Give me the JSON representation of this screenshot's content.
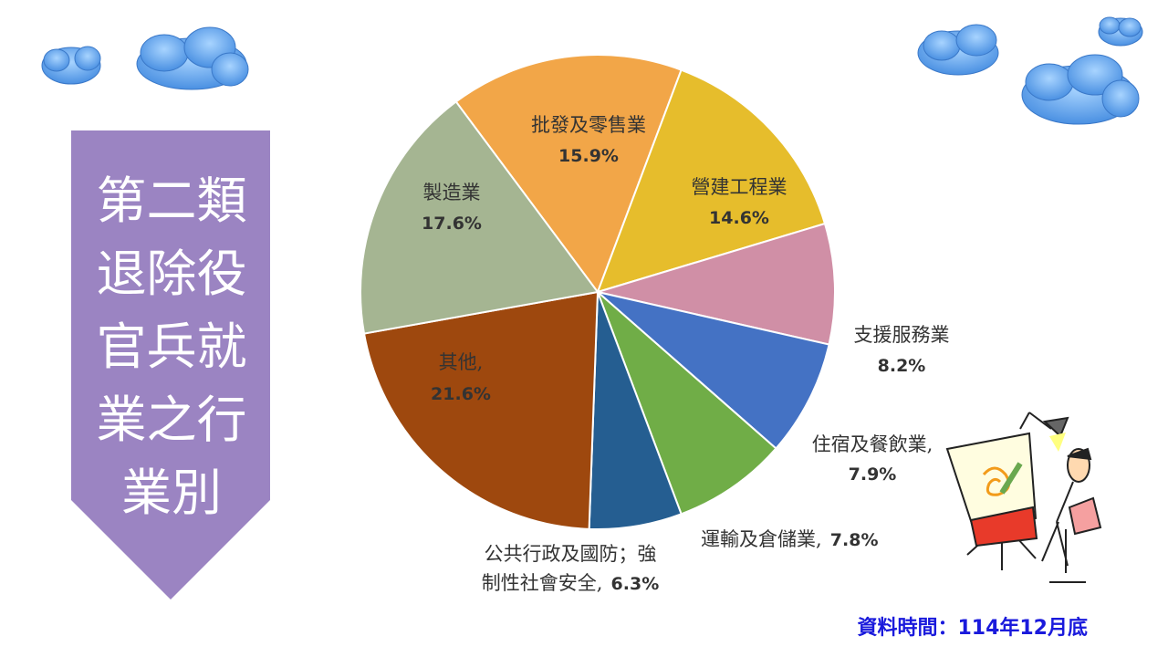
{
  "title": {
    "lines": [
      "第二類",
      "退除役",
      "官兵就",
      "業之行",
      "業別"
    ]
  },
  "source": "資料時間：114年12月底",
  "colors": {
    "banner": "#9b84c2",
    "source_text": "#1a1adc"
  },
  "chart_data": {
    "type": "pie",
    "title": "第二類退除役官兵就業之行業別",
    "unit": "%",
    "slices": [
      {
        "name": "批發及零售業",
        "value": 15.9,
        "value_label": "15.9%",
        "color": "#f2a648"
      },
      {
        "name": "營建工程業",
        "value": 14.6,
        "value_label": "14.6%",
        "color": "#e6bd2c"
      },
      {
        "name": "支援服務業",
        "value": 8.2,
        "value_label": "8.2%",
        "color": "#d08fa6"
      },
      {
        "name": "住宿及餐飲業,",
        "value": 7.9,
        "value_label": "7.9%",
        "color": "#4472c4"
      },
      {
        "name": "運輸及倉儲業,",
        "value": 7.8,
        "value_label": "7.8%",
        "color": "#70ad47"
      },
      {
        "name": "公共行政及國防；強制性社會安全,",
        "name_line1": "公共行政及國防；強",
        "name_line2": "制性社會安全,",
        "value": 6.3,
        "value_label": "6.3%",
        "color": "#255e91"
      },
      {
        "name": "其他,",
        "value": 21.6,
        "value_label": "21.6%",
        "color": "#9e480e"
      },
      {
        "name": "製造業",
        "value": 17.6,
        "value_label": "17.6%",
        "color": "#a5b592"
      }
    ]
  }
}
